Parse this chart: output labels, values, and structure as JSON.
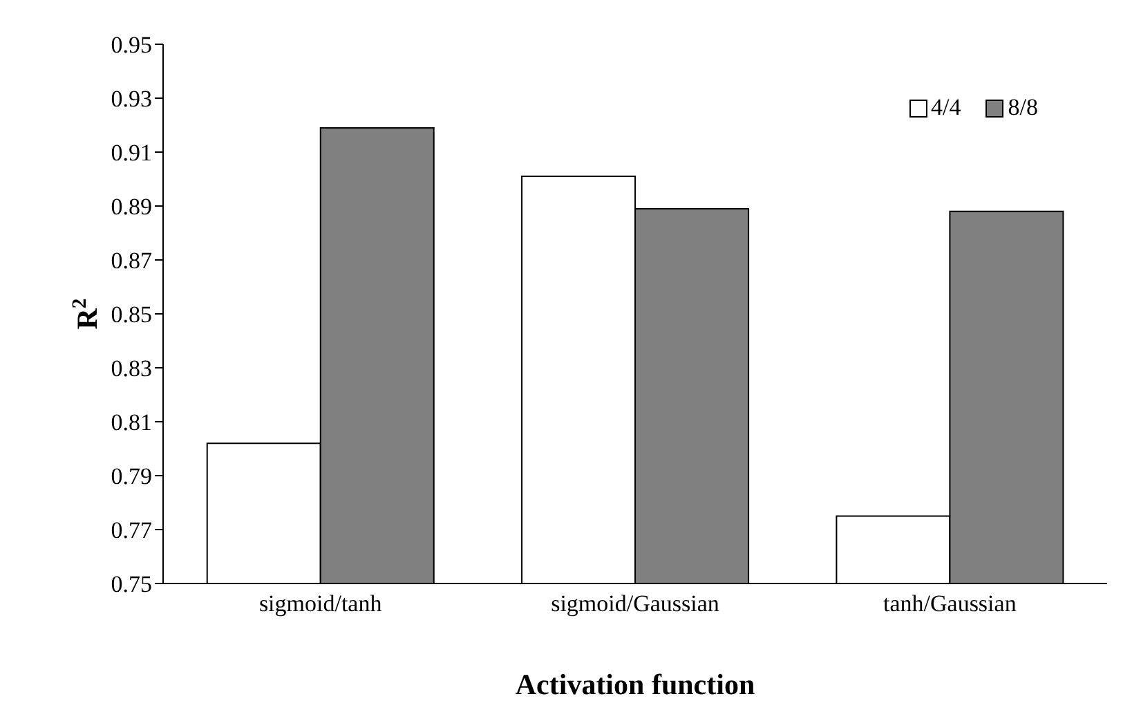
{
  "chart_data": {
    "type": "bar",
    "xlabel": "Activation function",
    "ylabel": "R$^{2}$",
    "categories": [
      "sigmoid/tanh",
      "sigmoid/Gaussian",
      "tanh/Gaussian"
    ],
    "series": [
      {
        "name": "4/4",
        "color": "#ffffff",
        "values": [
          0.802,
          0.901,
          0.775
        ]
      },
      {
        "name": "8/8",
        "color": "#808080",
        "values": [
          0.919,
          0.889,
          0.888
        ]
      }
    ],
    "ylim": [
      0.75,
      0.95
    ],
    "yticks": [
      0.75,
      0.77,
      0.79,
      0.81,
      0.83,
      0.85,
      0.87,
      0.89,
      0.91,
      0.93,
      0.95
    ],
    "grid": false,
    "legend": "top right"
  }
}
